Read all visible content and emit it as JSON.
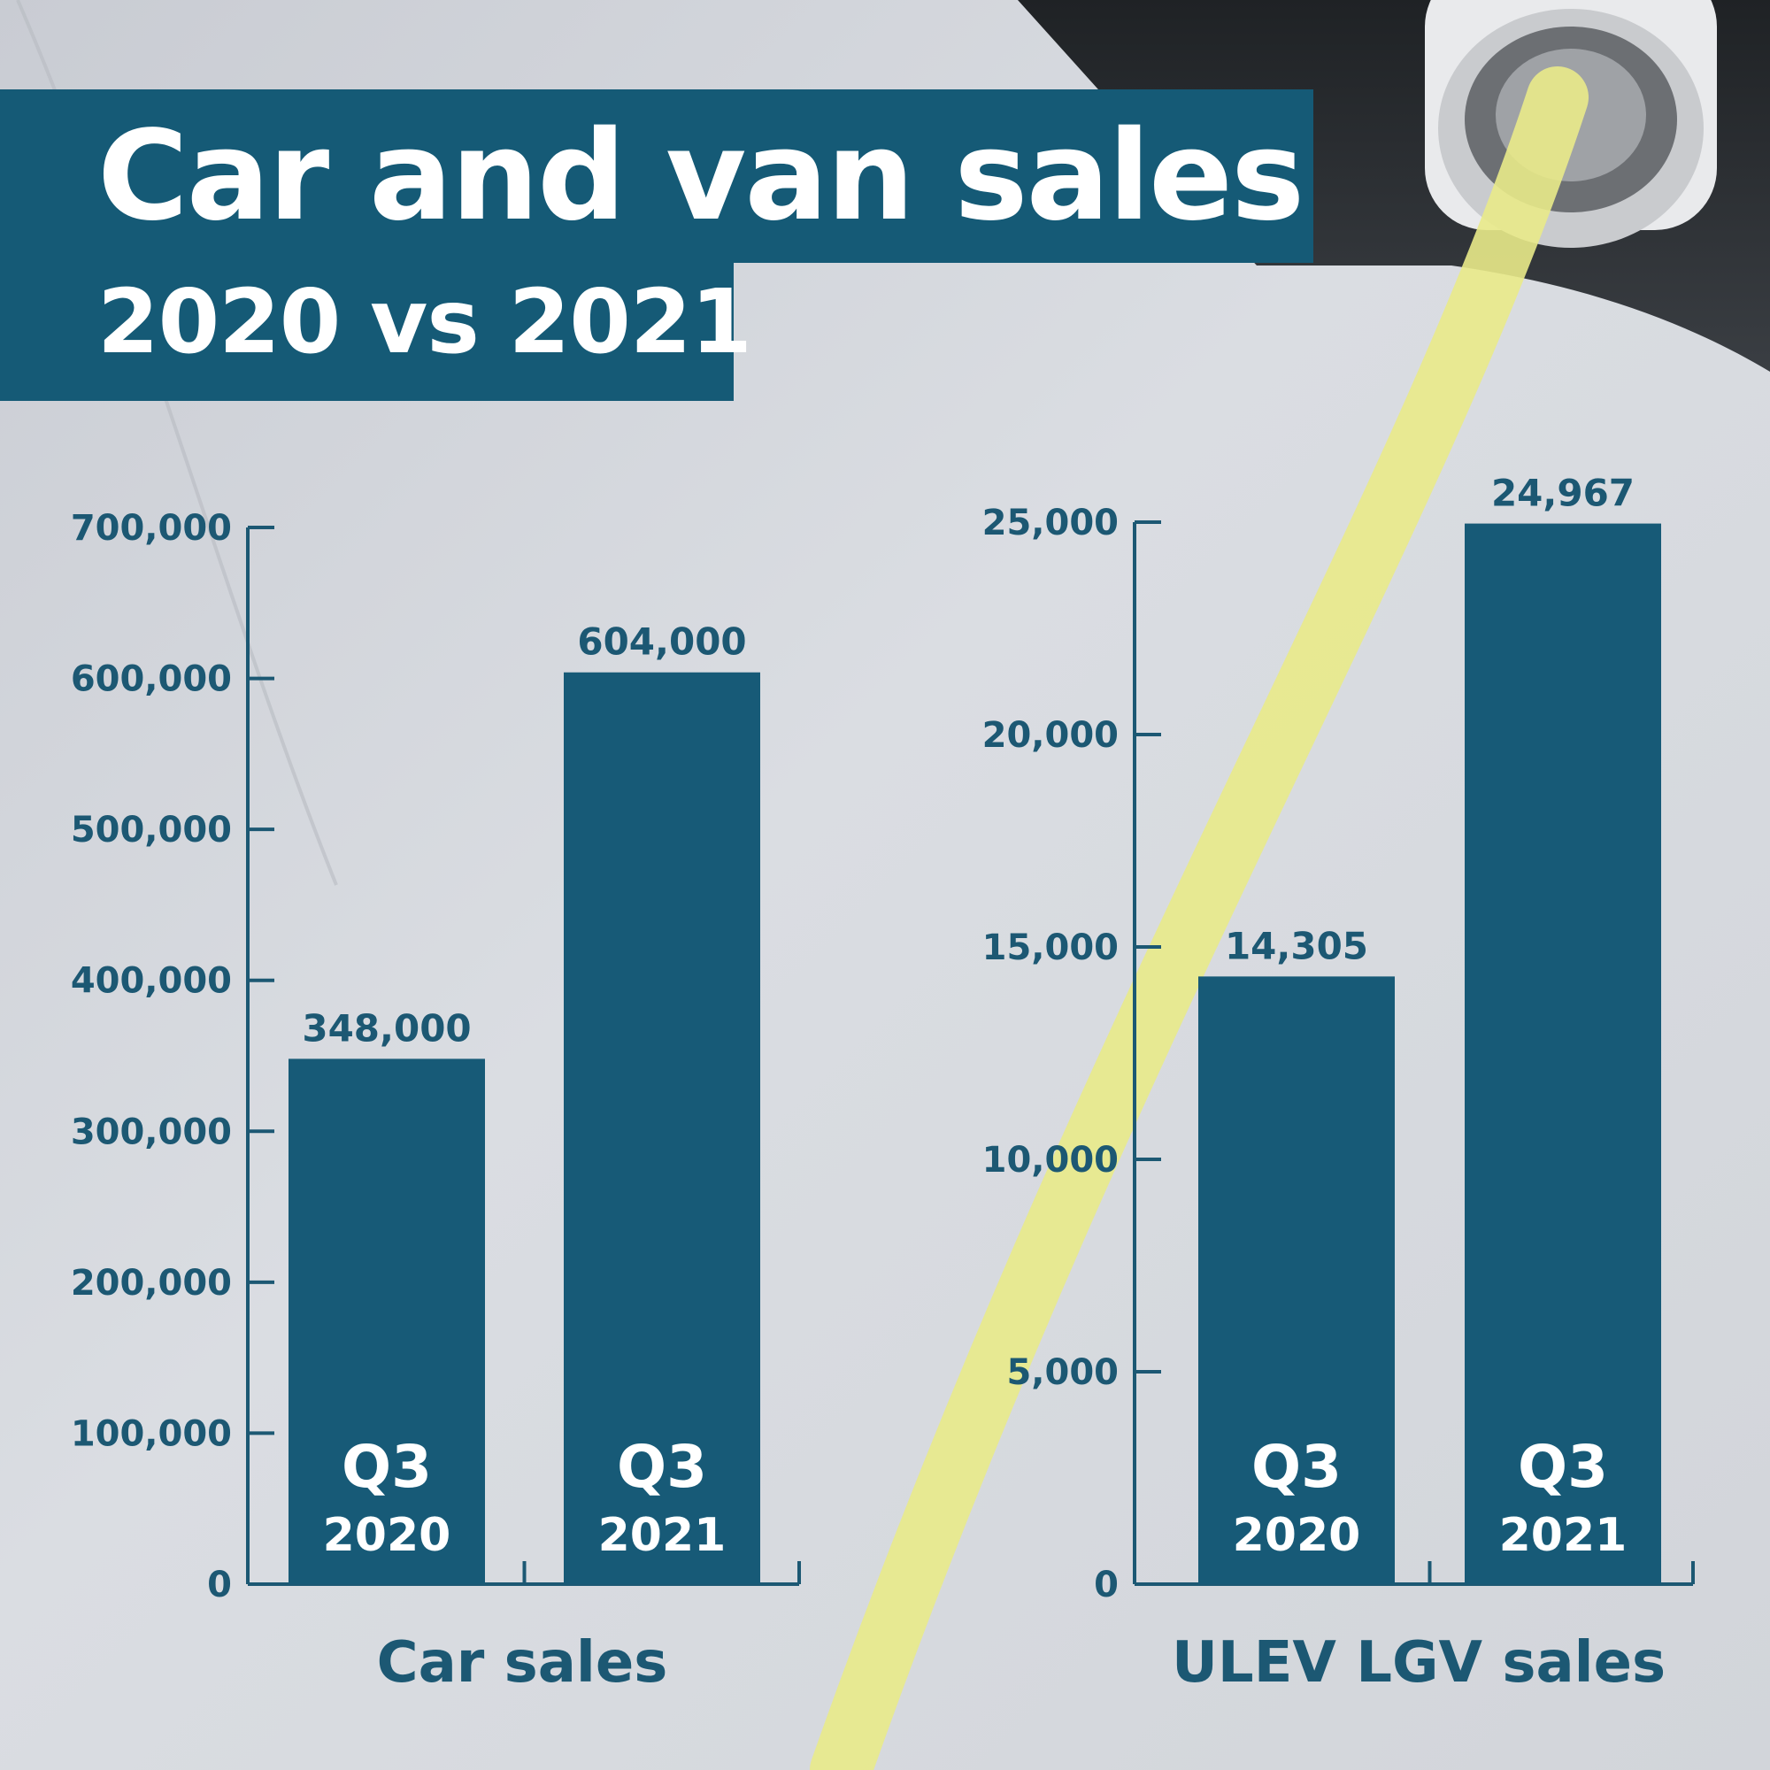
{
  "header": {
    "title": "Car and van sales",
    "subtitle": "2020 vs 2021"
  },
  "colors": {
    "bar": "#175a77",
    "axis": "#1c5873",
    "title_box": "#155a76",
    "cable": "#e9ea8a",
    "background": "#d6d9de"
  },
  "chart_data": [
    {
      "type": "bar",
      "xlabel": "Car sales",
      "ylabel": "",
      "ylim": [
        0,
        700000
      ],
      "yticks": [
        0,
        100000,
        200000,
        300000,
        400000,
        500000,
        600000,
        700000
      ],
      "ytick_labels": [
        "0",
        "100,000",
        "200,000",
        "300,000",
        "400,000",
        "500,000",
        "600,000",
        "700,000"
      ],
      "categories": [
        {
          "quarter": "Q3",
          "year": "2020"
        },
        {
          "quarter": "Q3",
          "year": "2021"
        }
      ],
      "values": [
        348000,
        604000
      ],
      "value_labels": [
        "348,000",
        "604,000"
      ],
      "grid": false
    },
    {
      "type": "bar",
      "xlabel": "ULEV LGV sales",
      "ylabel": "",
      "ylim": [
        0,
        25000
      ],
      "yticks": [
        0,
        5000,
        10000,
        15000,
        20000,
        25000
      ],
      "ytick_labels": [
        "0",
        "5,000",
        "10,000",
        "15,000",
        "20,000",
        "25,000"
      ],
      "categories": [
        {
          "quarter": "Q3",
          "year": "2020"
        },
        {
          "quarter": "Q3",
          "year": "2021"
        }
      ],
      "values": [
        14305,
        24967
      ],
      "value_labels": [
        "14,305",
        "24,967"
      ],
      "grid": false
    }
  ]
}
